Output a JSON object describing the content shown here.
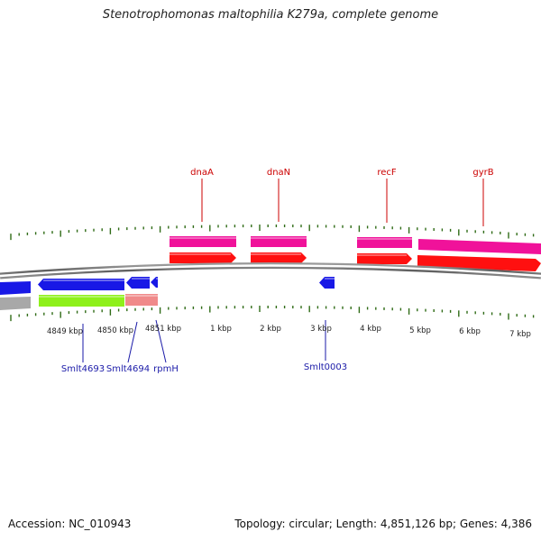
{
  "title": "Stenotrophomonas maltophilia K279a, complete genome",
  "footer": {
    "accession": "Accession: NC_010943",
    "stats": "Topology: circular; Length: 4,851,126 bp; Genes: 4,386"
  },
  "colors": {
    "backbone": "#6f6f6f",
    "tick": "#2f6b16",
    "gene_label_top": "#cc0000",
    "gene_label_bottom": "#1a1aa8",
    "pink_track": "#f0129a",
    "red_track": "#ff1010",
    "blue_track": "#1818e6",
    "green_track": "#8ef01a",
    "salmon_track": "#f08a8a",
    "gray_track": "#a8a8a8"
  },
  "ruler_labels": [
    "4849 kbp",
    "4850 kbp",
    "4851 kbp",
    "1 kbp",
    "2 kbp",
    "3 kbp",
    "4 kbp",
    "5 kbp",
    "6 kbp",
    "7 kbp"
  ],
  "top_genes": [
    "dnaA",
    "dnaN",
    "recF",
    "gyrB"
  ],
  "bottom_genes": [
    "Smlt4693",
    "Smlt4694",
    "rpmH",
    "Smlt0003"
  ]
}
